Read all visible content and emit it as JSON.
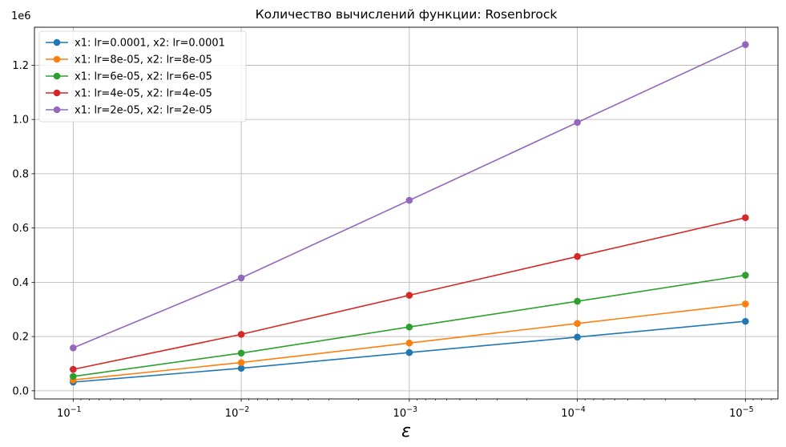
{
  "chart_data": {
    "type": "line",
    "title": "Количество вычислений функции: Rosenbrock",
    "xlabel": "ε",
    "ylabel": "",
    "offset_label": "1e6",
    "x": [
      0.1,
      0.01,
      0.001,
      0.0001,
      1e-05
    ],
    "x_tick_labels": [
      {
        "base": "10",
        "exp": "−1"
      },
      {
        "base": "10",
        "exp": "−2"
      },
      {
        "base": "10",
        "exp": "−3"
      },
      {
        "base": "10",
        "exp": "−4"
      },
      {
        "base": "10",
        "exp": "−5"
      }
    ],
    "x_scale": "log",
    "x_inverted": true,
    "xlim": [
      0.17,
      6.4e-06
    ],
    "y_ticks": [
      "0.0",
      "0.2",
      "0.4",
      "0.6",
      "0.8",
      "1.0",
      "1.2"
    ],
    "ylim": [
      -0.03,
      1.34
    ],
    "grid": true,
    "legend_position": "top-left",
    "series": [
      {
        "name": "x1: lr=0.0001, x2: lr=0.0001",
        "color": "#1f77b4",
        "values": [
          0.032,
          0.083,
          0.141,
          0.198,
          0.256
        ]
      },
      {
        "name": "x1: lr=8e-05, x2: lr=8e-05",
        "color": "#ff7f0e",
        "values": [
          0.04,
          0.104,
          0.176,
          0.248,
          0.32
        ]
      },
      {
        "name": "x1: lr=6e-05, x2: lr=6e-05",
        "color": "#2ca02c",
        "values": [
          0.053,
          0.139,
          0.235,
          0.33,
          0.426
        ]
      },
      {
        "name": "x1: lr=4e-05, x2: lr=4e-05",
        "color": "#d62728",
        "values": [
          0.079,
          0.208,
          0.352,
          0.495,
          0.638
        ]
      },
      {
        "name": "x1: lr=2e-05, x2: lr=2e-05",
        "color": "#9467bd",
        "values": [
          0.158,
          0.416,
          0.702,
          0.989,
          1.276
        ]
      }
    ]
  }
}
